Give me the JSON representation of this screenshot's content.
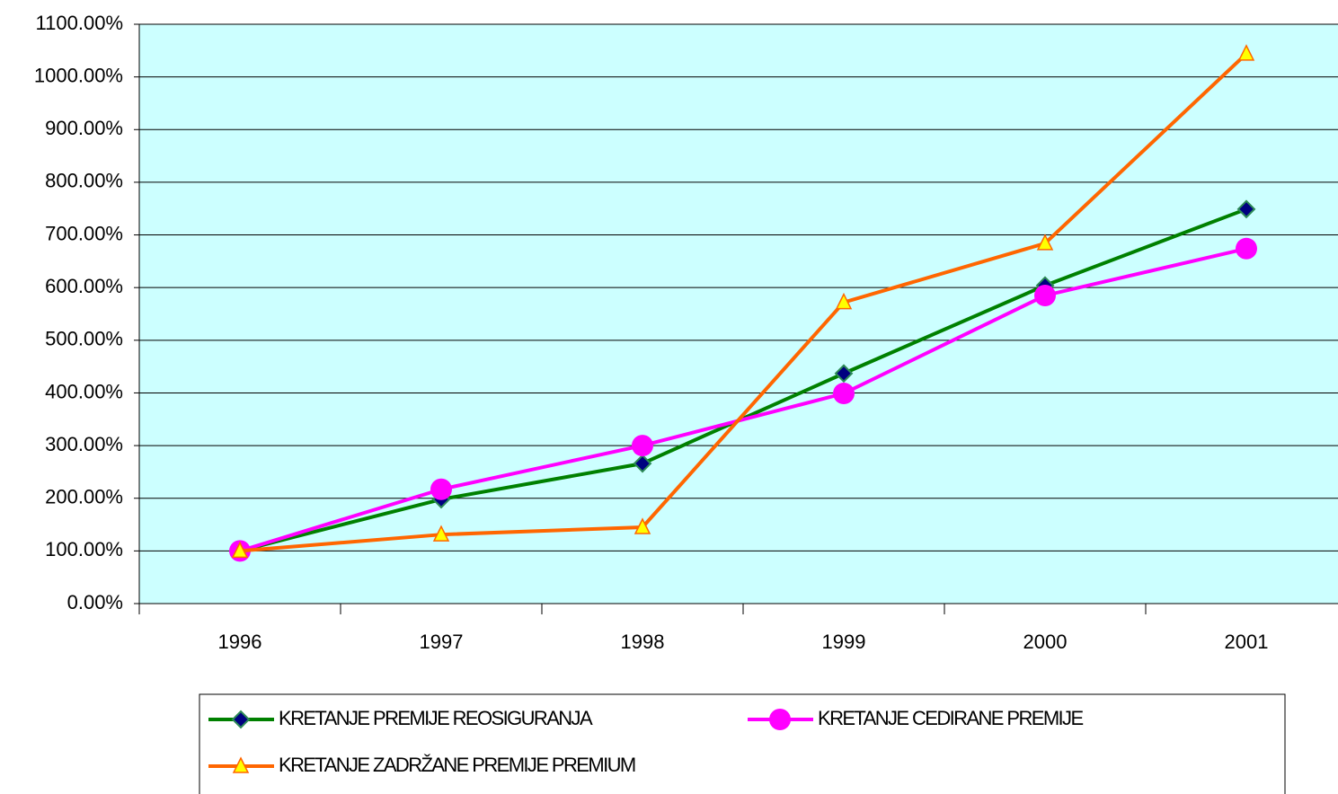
{
  "chart_data": {
    "type": "line",
    "categories": [
      "1996",
      "1997",
      "1998",
      "1999",
      "2000",
      "2001"
    ],
    "series": [
      {
        "name": "KRETANJE PREMIJE REOSIGURANJA",
        "color": "#008000",
        "marker": "diamond",
        "marker_color": "#000080",
        "values": [
          100,
          198,
          266,
          437,
          604,
          749
        ]
      },
      {
        "name": "KRETANJE CEDIRANE PREMIJE",
        "color": "#ff00ff",
        "marker": "circle",
        "marker_color": "#ff00ff",
        "values": [
          100,
          217,
          300,
          399,
          585,
          674
        ]
      },
      {
        "name": "KRETANJE ZADRŽANE PREMIJE PREMIUM",
        "color": "#ff6600",
        "marker": "triangle",
        "marker_color": "#ffff00",
        "values": [
          100,
          131,
          145,
          572,
          684,
          1044
        ]
      }
    ],
    "ylim": [
      0,
      1100
    ],
    "yticks": [
      {
        "value": 0,
        "label": "0.00%"
      },
      {
        "value": 100,
        "label": "100.00%"
      },
      {
        "value": 200,
        "label": "200.00%"
      },
      {
        "value": 300,
        "label": "300.00%"
      },
      {
        "value": 400,
        "label": "400.00%"
      },
      {
        "value": 500,
        "label": "500.00%"
      },
      {
        "value": 600,
        "label": "600.00%"
      },
      {
        "value": 700,
        "label": "700.00%"
      },
      {
        "value": 800,
        "label": "800.00%"
      },
      {
        "value": 900,
        "label": "900.00%"
      },
      {
        "value": 1000,
        "label": "1000.00%"
      },
      {
        "value": 1100,
        "label": "1100.00%"
      }
    ],
    "grid": true,
    "background": "#ccffff",
    "legend": "bottom"
  }
}
